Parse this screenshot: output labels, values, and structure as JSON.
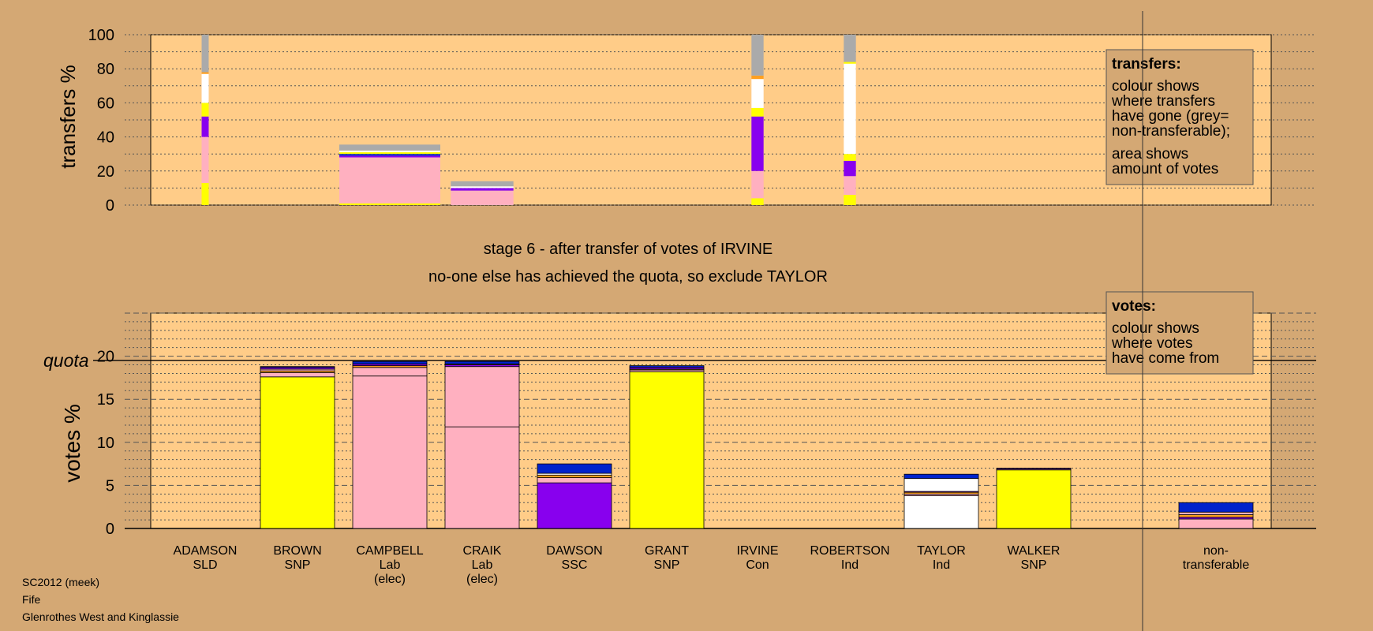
{
  "colors": {
    "page_bg": "#d4a874",
    "plot_bg": "#ffcc88",
    "SNP": "#ffff00",
    "Lab": "#ffb0c0",
    "SSC": "#8800ee",
    "Ind": "#ffffff",
    "Con": "#0022cc",
    "SLD": "#ffa020",
    "nontransferable": "#aaaaaa"
  },
  "chart_data": [
    {
      "type": "bar",
      "name": "transfers",
      "ylabel": "transfers %",
      "ylim": [
        0,
        100
      ],
      "yticks": [
        0,
        20,
        40,
        60,
        80,
        100
      ],
      "grid": true,
      "legend": {
        "position": "top-right",
        "title": "transfers:",
        "lines1": [
          "colour shows",
          "where transfers",
          "have gone (grey=",
          "non-transferable);"
        ],
        "lines2": [
          "area shows",
          "amount of votes"
        ]
      },
      "bars": [
        {
          "candidate": "ADAMSON",
          "width_fraction": 0.07,
          "segments": [
            {
              "party": "SNP",
              "value": 13
            },
            {
              "party": "Lab",
              "value": 27
            },
            {
              "party": "SSC",
              "value": 12
            },
            {
              "party": "SNP",
              "value": 8
            },
            {
              "party": "Ind",
              "value": 17
            },
            {
              "party": "SLD",
              "value": 1
            },
            {
              "party": "nontransferable",
              "value": 22
            }
          ]
        },
        {
          "candidate": "CAMPBELL",
          "width_fraction": 1.0,
          "segments": [
            {
              "party": "SNP",
              "value": 1
            },
            {
              "party": "Lab",
              "value": 27
            },
            {
              "party": "SSC",
              "value": 1
            },
            {
              "party": "Con",
              "value": 1
            },
            {
              "party": "SNP",
              "value": 1
            },
            {
              "party": "Ind",
              "value": 1
            },
            {
              "party": "nontransferable",
              "value": 3.5
            }
          ]
        },
        {
          "candidate": "CRAIK",
          "width_fraction": 0.62,
          "segments": [
            {
              "party": "Lab",
              "value": 8.5
            },
            {
              "party": "SSC",
              "value": 1.5
            },
            {
              "party": "Ind",
              "value": 1
            },
            {
              "party": "nontransferable",
              "value": 3
            }
          ]
        },
        {
          "candidate": "IRVINE",
          "width_fraction": 0.12,
          "segments": [
            {
              "party": "SNP",
              "value": 4
            },
            {
              "party": "Lab",
              "value": 16
            },
            {
              "party": "SSC",
              "value": 32
            },
            {
              "party": "SNP",
              "value": 5
            },
            {
              "party": "Ind",
              "value": 17
            },
            {
              "party": "SLD",
              "value": 2
            },
            {
              "party": "nontransferable",
              "value": 24
            }
          ]
        },
        {
          "candidate": "ROBERTSON",
          "width_fraction": 0.12,
          "segments": [
            {
              "party": "SNP",
              "value": 6
            },
            {
              "party": "Lab",
              "value": 11
            },
            {
              "party": "SSC",
              "value": 9
            },
            {
              "party": "SNP",
              "value": 4
            },
            {
              "party": "Ind",
              "value": 53
            },
            {
              "party": "SNP",
              "value": 1
            },
            {
              "party": "nontransferable",
              "value": 16
            }
          ]
        }
      ]
    },
    {
      "type": "bar",
      "name": "votes",
      "ylabel": "votes %",
      "ylim": [
        0,
        25
      ],
      "yticks": [
        0,
        5,
        10,
        15,
        20
      ],
      "quota": 19.5,
      "quota_label": "quota",
      "grid": true,
      "legend": {
        "position": "top-right",
        "title": "votes:",
        "lines": [
          "colour shows",
          "where votes",
          "have come from"
        ]
      },
      "categories": [
        {
          "name": "ADAMSON",
          "party": "SLD",
          "note": ""
        },
        {
          "name": "BROWN",
          "party": "SNP",
          "note": ""
        },
        {
          "name": "CAMPBELL",
          "party": "Lab",
          "note": "(elec)"
        },
        {
          "name": "CRAIK",
          "party": "Lab",
          "note": "(elec)"
        },
        {
          "name": "DAWSON",
          "party": "SSC",
          "note": ""
        },
        {
          "name": "GRANT",
          "party": "SNP",
          "note": ""
        },
        {
          "name": "IRVINE",
          "party": "Con",
          "note": ""
        },
        {
          "name": "ROBERTSON",
          "party": "Ind",
          "note": ""
        },
        {
          "name": "TAYLOR",
          "party": "Ind",
          "note": ""
        },
        {
          "name": "WALKER",
          "party": "SNP",
          "note": ""
        }
      ],
      "nontransferable_label": [
        "non-",
        "transferable"
      ],
      "stacks": [
        [],
        [
          {
            "party": "SNP",
            "value": 17.6
          },
          {
            "party": "Lab",
            "value": 0.5
          },
          {
            "party": "SLD",
            "value": 0.2
          },
          {
            "party": "Lab",
            "value": 0.2
          },
          {
            "party": "SSC",
            "value": 0.2
          },
          {
            "party": "Con",
            "value": 0.1
          }
        ],
        [
          {
            "party": "Lab",
            "value": 17.7
          },
          {
            "party": "Lab",
            "value": 1.0
          },
          {
            "party": "SLD",
            "value": 0.2
          },
          {
            "party": "SSC",
            "value": 0.2
          },
          {
            "party": "Con",
            "value": 0.3
          }
        ],
        [
          {
            "party": "Lab",
            "value": 11.8
          },
          {
            "party": "Lab",
            "value": 7.0
          },
          {
            "party": "SSC",
            "value": 0.2
          },
          {
            "party": "SLD",
            "value": 0.1
          },
          {
            "party": "Con",
            "value": 0.3
          }
        ],
        [
          {
            "party": "SSC",
            "value": 5.3
          },
          {
            "party": "Lab",
            "value": 0.6
          },
          {
            "party": "SLD",
            "value": 0.3
          },
          {
            "party": "Ind",
            "value": 0.2
          },
          {
            "party": "Con",
            "value": 1.1
          }
        ],
        [
          {
            "party": "SNP",
            "value": 18.2
          },
          {
            "party": "Lab",
            "value": 0.2
          },
          {
            "party": "SLD",
            "value": 0.1
          },
          {
            "party": "SSC",
            "value": 0.2
          },
          {
            "party": "Con",
            "value": 0.2
          }
        ],
        [],
        [],
        [
          {
            "party": "Ind",
            "value": 3.8
          },
          {
            "party": "Lab",
            "value": 0.2
          },
          {
            "party": "SLD",
            "value": 0.2
          },
          {
            "party": "SSC",
            "value": 0.1
          },
          {
            "party": "Ind",
            "value": 1.5
          },
          {
            "party": "Con",
            "value": 0.5
          }
        ],
        [
          {
            "party": "SNP",
            "value": 6.8
          },
          {
            "party": "Lab",
            "value": 0.1
          },
          {
            "party": "SSC",
            "value": 0.1
          }
        ],
        [
          {
            "party": "Lab",
            "value": 1.1
          },
          {
            "party": "SSC",
            "value": 0.2
          },
          {
            "party": "SLD",
            "value": 0.3
          },
          {
            "party": "Lab",
            "value": 0.3
          },
          {
            "party": "Con",
            "value": 1.1
          }
        ]
      ]
    }
  ],
  "stage_text": "stage 6 - after transfer of votes of IRVINE",
  "action_text": "no-one else has achieved the quota, so exclude TAYLOR",
  "footer": [
    "SC2012 (meek)",
    "Fife",
    "Glenrothes West and Kinglassie"
  ]
}
